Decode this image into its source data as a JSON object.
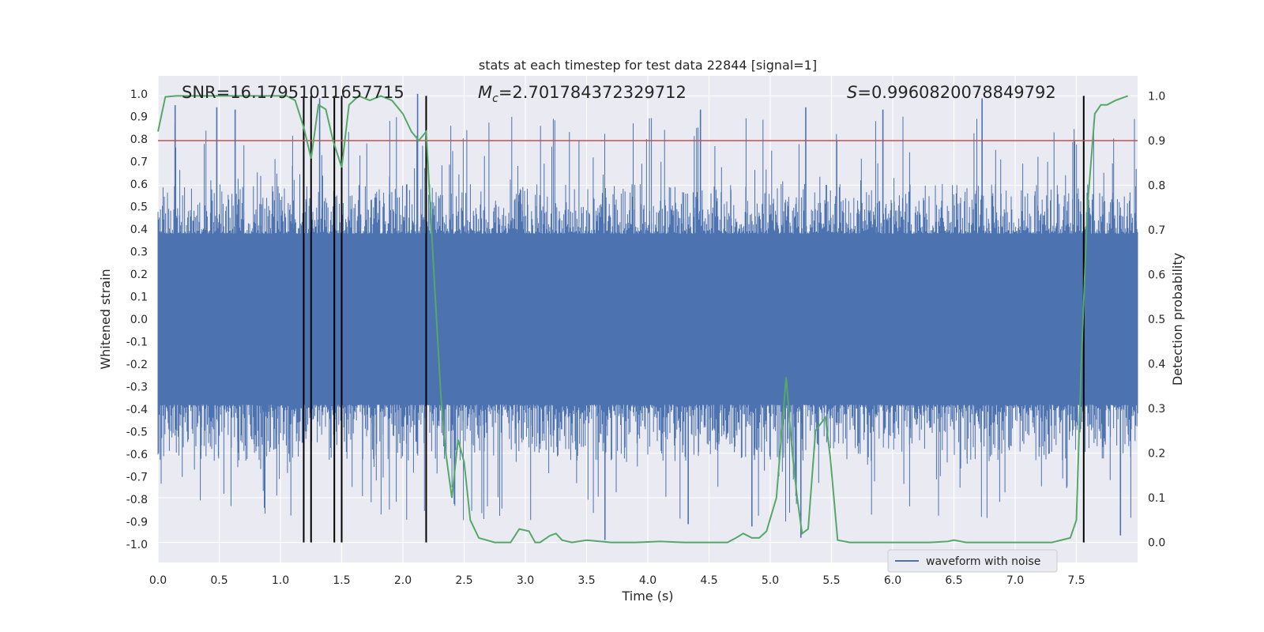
{
  "chart_data": {
    "type": "line",
    "title": "stats at each timestep for test data 22844 [signal=1]",
    "xlabel": "Time (s)",
    "ylabel": "Whitened strain",
    "y2label": "Detection probability",
    "xlim": [
      0.0,
      8.0
    ],
    "ylim": [
      -1.08,
      1.08
    ],
    "y2lim": [
      -0.045,
      1.045
    ],
    "x_ticks": [
      "0.0",
      "0.5",
      "1.0",
      "1.5",
      "2.0",
      "2.5",
      "3.0",
      "3.5",
      "4.0",
      "4.5",
      "5.0",
      "5.5",
      "6.0",
      "6.5",
      "7.0",
      "7.5"
    ],
    "y_ticks": [
      "1.0",
      "0.9",
      "0.8",
      "0.7",
      "0.6",
      "0.5",
      "0.4",
      "0.3",
      "0.2",
      "0.1",
      "0.0",
      "-0.1",
      "-0.2",
      "-0.3",
      "-0.4",
      "-0.5",
      "-0.6",
      "-0.7",
      "-0.8",
      "-0.9",
      "-1.0"
    ],
    "y2_ticks": [
      "1.0",
      "0.9",
      "0.8",
      "0.7",
      "0.6",
      "0.5",
      "0.4",
      "0.3",
      "0.2",
      "0.1",
      "0.0"
    ],
    "threshold": {
      "value": 0.9,
      "axis": "right",
      "color": "#c44e52"
    },
    "annotations": {
      "snr": "SNR=16.17951011657715",
      "mc_symbol": "M",
      "mc_sub": "c",
      "mc_value": "=2.701784372329712",
      "s_symbol": "S",
      "s_value": "=0.9960820078849792"
    },
    "detection_lines_x": [
      1.19,
      1.25,
      1.44,
      1.5,
      2.19,
      7.56
    ],
    "legend": {
      "label": "waveform with noise",
      "position": "lower right"
    },
    "series": [
      {
        "name": "waveform with noise",
        "axis": "left",
        "color": "#4c72b0",
        "description": "dense noisy whitened strain, amplitude mostly within ±0.5 with spikes up to about ±1.0",
        "spikes": [
          {
            "x": 0.14,
            "y": 0.95
          },
          {
            "x": 0.48,
            "y": 0.94
          },
          {
            "x": 0.63,
            "y": 0.93
          },
          {
            "x": 1.32,
            "y": 0.98
          },
          {
            "x": 2.12,
            "y": 1.0
          },
          {
            "x": 4.43,
            "y": 0.93
          },
          {
            "x": 5.29,
            "y": 0.94
          },
          {
            "x": 5.92,
            "y": 0.93
          },
          {
            "x": 6.73,
            "y": 0.98
          },
          {
            "x": 2.42,
            "y": -0.82
          },
          {
            "x": 3.65,
            "y": -0.98
          },
          {
            "x": 4.33,
            "y": -0.91
          },
          {
            "x": 4.85,
            "y": -0.92
          },
          {
            "x": 5.25,
            "y": -0.97
          },
          {
            "x": 7.86,
            "y": -0.96
          }
        ]
      },
      {
        "name": "detection probability",
        "axis": "right",
        "color": "#55a868",
        "x": [
          0.0,
          0.06,
          0.15,
          0.3,
          0.5,
          0.7,
          0.9,
          1.05,
          1.12,
          1.19,
          1.25,
          1.31,
          1.37,
          1.43,
          1.5,
          1.56,
          1.64,
          1.73,
          1.82,
          1.91,
          2.0,
          2.07,
          2.13,
          2.19,
          2.23,
          2.27,
          2.31,
          2.35,
          2.4,
          2.45,
          2.5,
          2.55,
          2.62,
          2.75,
          2.88,
          2.95,
          3.03,
          3.08,
          3.12,
          3.2,
          3.25,
          3.3,
          3.38,
          3.5,
          3.7,
          3.9,
          4.1,
          4.3,
          4.5,
          4.65,
          4.72,
          4.78,
          4.85,
          4.91,
          4.97,
          5.05,
          5.13,
          5.18,
          5.22,
          5.26,
          5.31,
          5.37,
          5.45,
          5.49,
          5.55,
          5.65,
          5.9,
          6.3,
          6.45,
          6.5,
          6.6,
          7.0,
          7.3,
          7.45,
          7.5,
          7.54,
          7.59,
          7.65,
          7.7,
          7.75,
          7.82,
          7.92
        ],
        "y": [
          0.92,
          0.998,
          1.0,
          1.0,
          1.0,
          1.0,
          1.0,
          1.0,
          0.99,
          0.93,
          0.86,
          0.98,
          0.97,
          0.9,
          0.84,
          0.98,
          1.0,
          0.99,
          1.0,
          0.99,
          0.96,
          0.92,
          0.9,
          0.92,
          0.72,
          0.52,
          0.33,
          0.2,
          0.1,
          0.23,
          0.18,
          0.05,
          0.01,
          0.0,
          0.0,
          0.03,
          0.025,
          0.0,
          0.0,
          0.015,
          0.02,
          0.005,
          0.0,
          0.005,
          0.0,
          0.0,
          0.002,
          0.0,
          0.0,
          0.0,
          0.01,
          0.02,
          0.01,
          0.01,
          0.025,
          0.1,
          0.37,
          0.2,
          0.1,
          0.02,
          0.03,
          0.25,
          0.28,
          0.19,
          0.005,
          0.0,
          0.0,
          0.0,
          0.002,
          0.005,
          0.0,
          0.0,
          0.0,
          0.01,
          0.05,
          0.4,
          0.75,
          0.96,
          0.98,
          0.98,
          0.99,
          1.0
        ]
      }
    ]
  }
}
